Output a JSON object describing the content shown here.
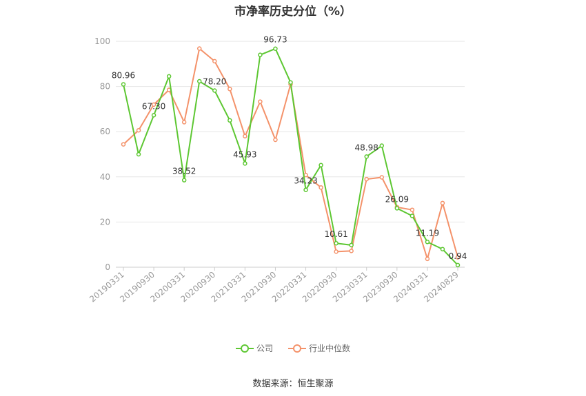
{
  "title": "市净率历史分位（%）",
  "source": "数据来源：恒生聚源",
  "chart_data": {
    "type": "line",
    "x": [
      "20190331",
      "20190630",
      "20190930",
      "20191231",
      "20200331",
      "20200630",
      "20200930",
      "20201231",
      "20210331",
      "20210630",
      "20210930",
      "20211231",
      "20220331",
      "20220630",
      "20220930",
      "20221231",
      "20230331",
      "20230630",
      "20230930",
      "20231231",
      "20240331",
      "20240630",
      "20240829"
    ],
    "tick_labels": [
      "20190331",
      "20190930",
      "20200331",
      "20200930",
      "20210331",
      "20210930",
      "20220331",
      "20220930",
      "20230331",
      "20230930",
      "20240331",
      "20240829"
    ],
    "ylim": [
      0,
      100
    ],
    "yticks": [
      0,
      20,
      40,
      60,
      80,
      100
    ],
    "grid": true,
    "legend_position": "bottom",
    "series": [
      {
        "name": "公司",
        "color": "#5dc732",
        "values": [
          80.96,
          50.0,
          67.3,
          84.5,
          38.52,
          82.3,
          78.2,
          65.0,
          45.93,
          94.0,
          96.73,
          81.8,
          34.23,
          45.2,
          10.61,
          9.8,
          48.98,
          53.8,
          26.09,
          22.7,
          11.19,
          8.0,
          0.94
        ],
        "labels": [
          "80.96",
          "",
          "67.30",
          "",
          "38.52",
          "",
          "78.20",
          "",
          "45.93",
          "",
          "96.73",
          "",
          "34.23",
          "",
          "10.61",
          "",
          "48.98",
          "",
          "26.09",
          "",
          "11.19",
          "",
          "0.94"
        ]
      },
      {
        "name": "行业中位数",
        "color": "#f4926a",
        "values": [
          54.4,
          60.6,
          72.0,
          78.5,
          64.2,
          96.8,
          91.2,
          78.9,
          58.0,
          73.3,
          56.4,
          81.0,
          40.8,
          35.3,
          6.9,
          7.2,
          39.0,
          39.8,
          26.6,
          25.4,
          3.7,
          28.4,
          4.4
        ]
      }
    ]
  }
}
